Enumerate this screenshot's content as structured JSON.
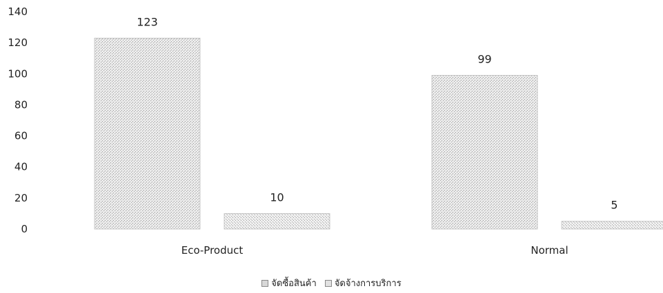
{
  "chart_data": {
    "type": "bar",
    "categories": [
      "Eco-Product",
      "Normal"
    ],
    "series": [
      {
        "name": "จัดซื้อสินค้า",
        "values": [
          123,
          99
        ]
      },
      {
        "name": "จัดจ้างการบริการ",
        "values": [
          10,
          5
        ]
      }
    ],
    "data_labels": true,
    "ylim": [
      0,
      140
    ],
    "yticks": [
      "0",
      "20",
      "40",
      "60",
      "80",
      "100",
      "120",
      "140"
    ],
    "grid": false,
    "legend_position": "bottom"
  }
}
